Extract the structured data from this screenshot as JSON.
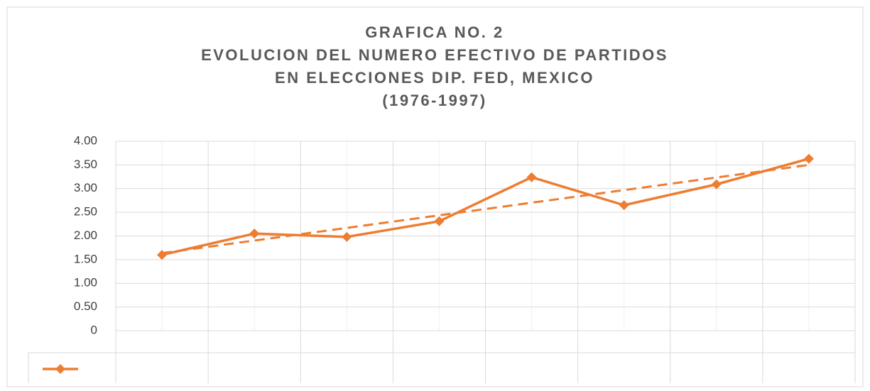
{
  "chart_data": {
    "type": "line",
    "title": [
      "GRAFICA  NO. 2",
      "EVOLUCION DEL NUMERO EFECTIVO DE PARTIDOS",
      "EN ELECCIONES DIP. FED, MEXICO",
      "(1976-1997)"
    ],
    "categories": [
      null,
      null,
      null,
      null,
      null,
      null,
      null,
      null
    ],
    "series": [
      {
        "color": "#ed7d31",
        "marker": "diamond",
        "trendline": "linear",
        "values": [
          1.6,
          2.05,
          1.98,
          2.31,
          3.24,
          2.65,
          3.09,
          3.63
        ]
      }
    ],
    "ylim": [
      0,
      4
    ],
    "yticks": [
      0,
      {
        "value": 0.5,
        "label": "0.50"
      },
      {
        "value": 1,
        "label": "1.00"
      },
      {
        "value": 1.5,
        "label": "1.50"
      },
      {
        "value": 2,
        "label": "2.00"
      },
      {
        "value": 2.5,
        "label": "2.50"
      },
      {
        "value": 3,
        "label": "3.00"
      },
      {
        "value": 3.5,
        "label": "3.50"
      },
      {
        "value": 4,
        "label": "4.00"
      }
    ],
    "grid": true,
    "legend": "bottom-left"
  }
}
